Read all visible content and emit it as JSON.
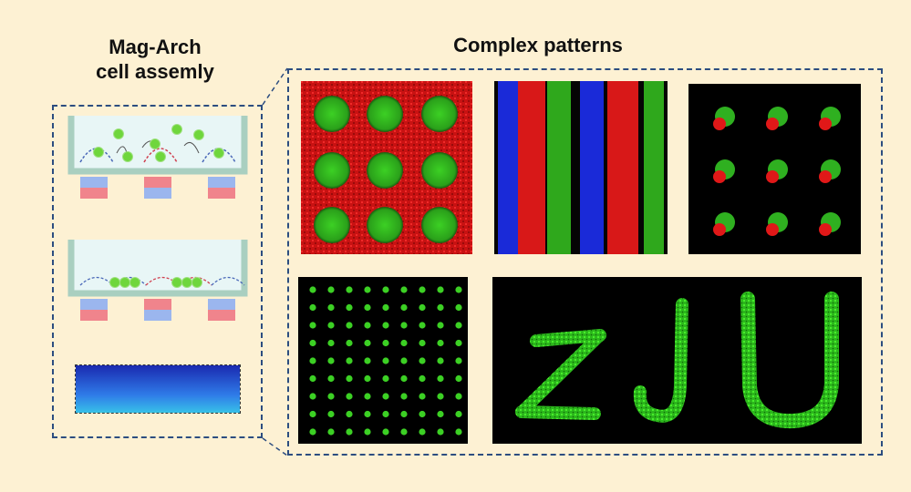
{
  "left_panel": {
    "title_line1": "Mag-Arch",
    "title_line2": "cell assemly"
  },
  "right_panel": {
    "title": "Complex patterns"
  },
  "letters_pattern": {
    "text": "ZJU"
  },
  "colors": {
    "background": "#fdf1d3",
    "dashed_border": "#2c4d80",
    "cell_green": "#3cd024",
    "red_fluor": "#e01818",
    "blue_fluor": "#1a2ad8",
    "magnet_blue": "#9bb6ee",
    "magnet_red": "#f0848c",
    "dish_wall": "#a9cfc0"
  }
}
